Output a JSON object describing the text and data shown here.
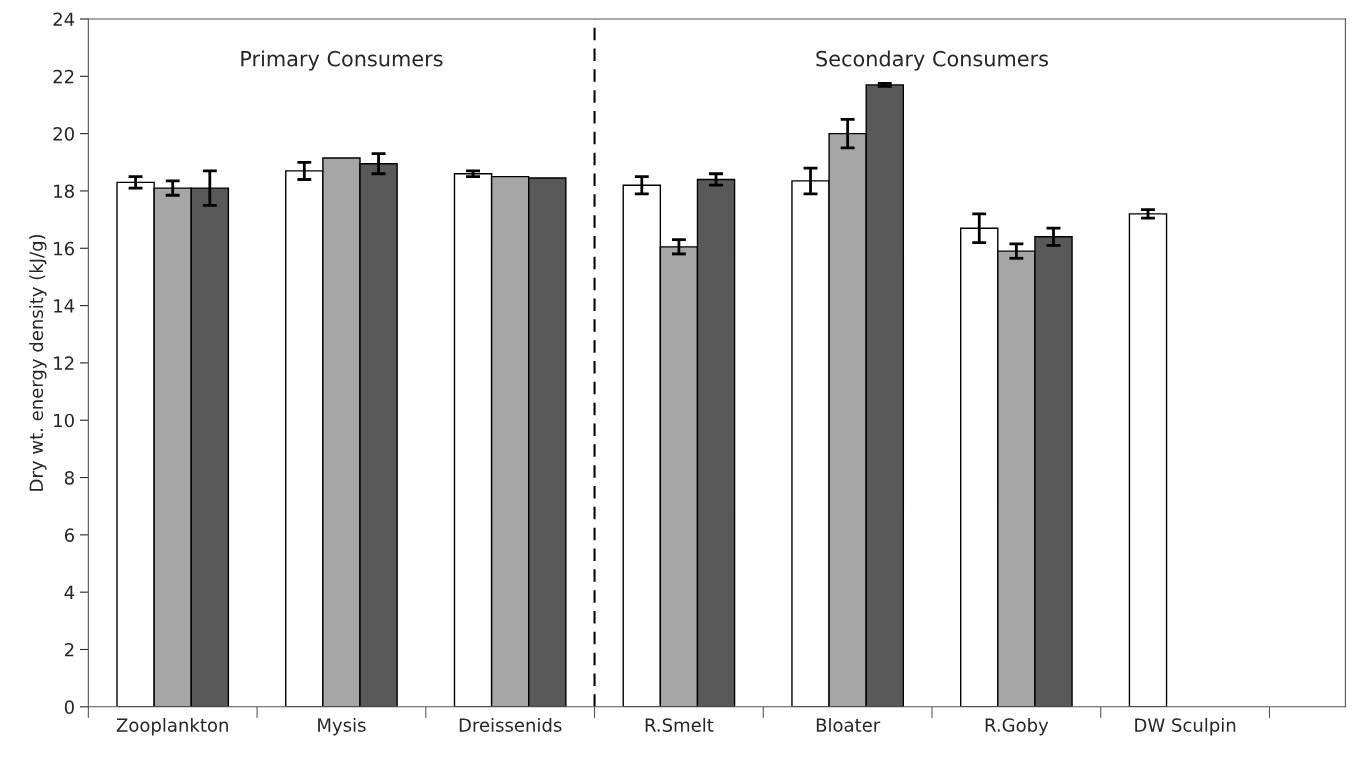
{
  "chart_data": {
    "type": "bar",
    "ylabel": "Dry wt. energy density (kJ/g)",
    "categories": [
      "Zooplankton",
      "Mysis",
      "Dreissenids",
      "R.Smelt",
      "Bloater",
      "R.Goby",
      "DW Sculpin"
    ],
    "series": [
      {
        "color": "#ffffff",
        "values": [
          18.3,
          18.7,
          18.6,
          18.2,
          18.35,
          16.7,
          17.2
        ],
        "errors": [
          0.2,
          0.3,
          0.1,
          0.3,
          0.45,
          0.5,
          0.15
        ]
      },
      {
        "color": "#a6a6a6",
        "values": [
          18.1,
          19.15,
          18.5,
          16.05,
          20.0,
          15.9,
          null
        ],
        "errors": [
          0.25,
          null,
          null,
          0.25,
          0.5,
          0.25,
          null
        ]
      },
      {
        "color": "#595959",
        "values": [
          18.1,
          18.95,
          18.45,
          18.4,
          21.7,
          16.4,
          null
        ],
        "errors": [
          0.6,
          0.35,
          null,
          0.2,
          0.05,
          0.3,
          null
        ]
      }
    ],
    "ylim": [
      0,
      24
    ],
    "yticks": [
      0,
      2,
      4,
      6,
      8,
      10,
      12,
      14,
      16,
      18,
      20,
      22,
      24
    ],
    "annotations": [
      "Primary Consumers",
      "Secondary Consumers"
    ],
    "grid": false,
    "legend": false
  }
}
